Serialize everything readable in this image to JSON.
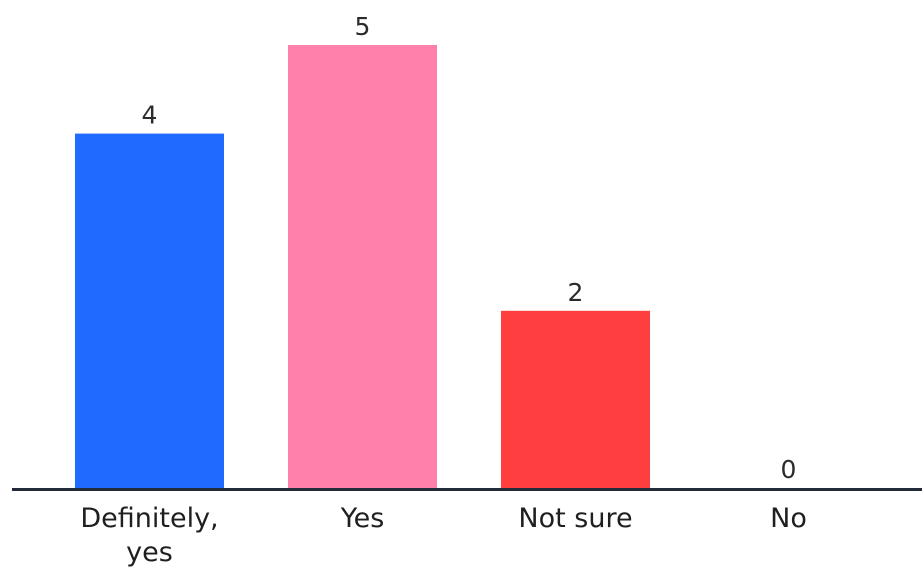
{
  "chart_data": {
    "type": "bar",
    "categories": [
      "Definitely, yes",
      "Yes",
      "Not sure",
      "No"
    ],
    "category_lines": [
      [
        "Definitely,",
        "yes"
      ],
      [
        "Yes"
      ],
      [
        "Not sure"
      ],
      [
        "No"
      ]
    ],
    "values": [
      4,
      5,
      2,
      0
    ],
    "value_labels": [
      "4",
      "5",
      "2",
      "0"
    ],
    "colors": [
      "#1f6bff",
      "#ff80aa",
      "#ff3f3f",
      "#cccccc"
    ],
    "axis_color": "#222a3a",
    "ylim": [
      0,
      5
    ],
    "title": "",
    "xlabel": "",
    "ylabel": "",
    "grid": false,
    "legend": "none"
  }
}
